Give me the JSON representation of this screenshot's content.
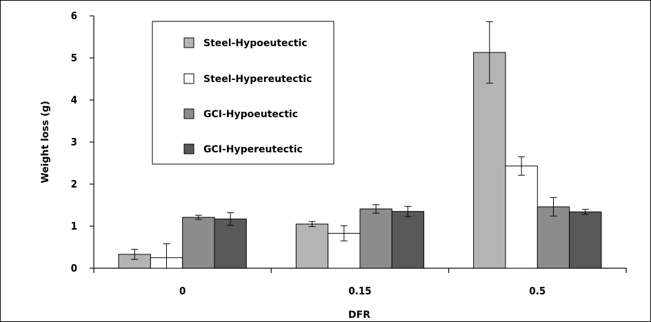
{
  "chart_data": {
    "type": "bar",
    "categories": [
      "0",
      "0.15",
      "0.5"
    ],
    "series": [
      {
        "name": "Steel-Hypoeutectic",
        "color": "#b4b4b4",
        "values": [
          0.33,
          1.05,
          5.13
        ],
        "errors": [
          0.12,
          0.06,
          0.73
        ]
      },
      {
        "name": "Steel-Hypereutectic",
        "color": "#ffffff",
        "values": [
          0.25,
          0.83,
          2.43
        ],
        "errors": [
          0.33,
          0.18,
          0.22
        ]
      },
      {
        "name": "GCI-Hypoeutectic",
        "color": "#8c8c8c",
        "values": [
          1.21,
          1.41,
          1.46
        ],
        "errors": [
          0.05,
          0.1,
          0.22
        ]
      },
      {
        "name": "GCI-Hypereutectic",
        "color": "#595959",
        "values": [
          1.17,
          1.35,
          1.34
        ],
        "errors": [
          0.15,
          0.12,
          0.06
        ]
      }
    ],
    "xlabel": "DFR",
    "ylabel": "Weight loss (g)",
    "ylim": [
      0,
      6
    ],
    "yticks": [
      "0",
      "1",
      "2",
      "3",
      "4",
      "5",
      "6"
    ],
    "grid": false,
    "legend_position": "top-left"
  }
}
